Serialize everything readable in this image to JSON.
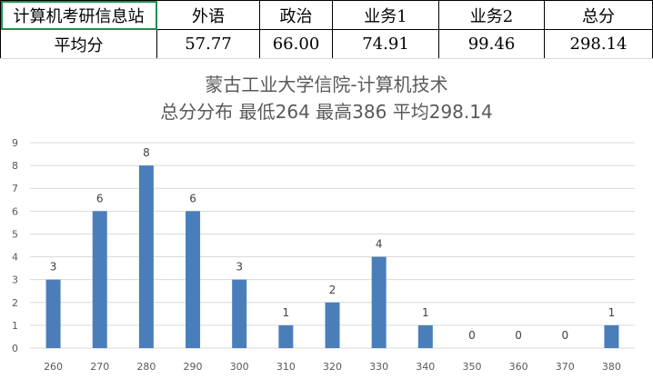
{
  "table": {
    "headers": [
      "计算机考研信息站",
      "外语",
      "政治",
      "业务1",
      "业务2",
      "总分"
    ],
    "row_label": "平均分",
    "values": [
      "57.77",
      "66.00",
      "74.91",
      "99.46",
      "298.14"
    ]
  },
  "chart_data": {
    "type": "bar",
    "title": "蒙古工业大学信院-计算机技术",
    "subtitle": "总分分布 最低264 最高386 平均298.14",
    "categories": [
      "260",
      "270",
      "280",
      "290",
      "300",
      "310",
      "320",
      "330",
      "340",
      "350",
      "360",
      "370",
      "380"
    ],
    "values": [
      3,
      6,
      8,
      6,
      3,
      1,
      2,
      4,
      1,
      0,
      0,
      0,
      1
    ],
    "ylim": [
      0,
      9
    ],
    "yticks": [
      0,
      1,
      2,
      3,
      4,
      5,
      6,
      7,
      8,
      9
    ],
    "grid": true,
    "bar_color": "#4a7ebb",
    "grid_color": "#d9d9d9"
  }
}
